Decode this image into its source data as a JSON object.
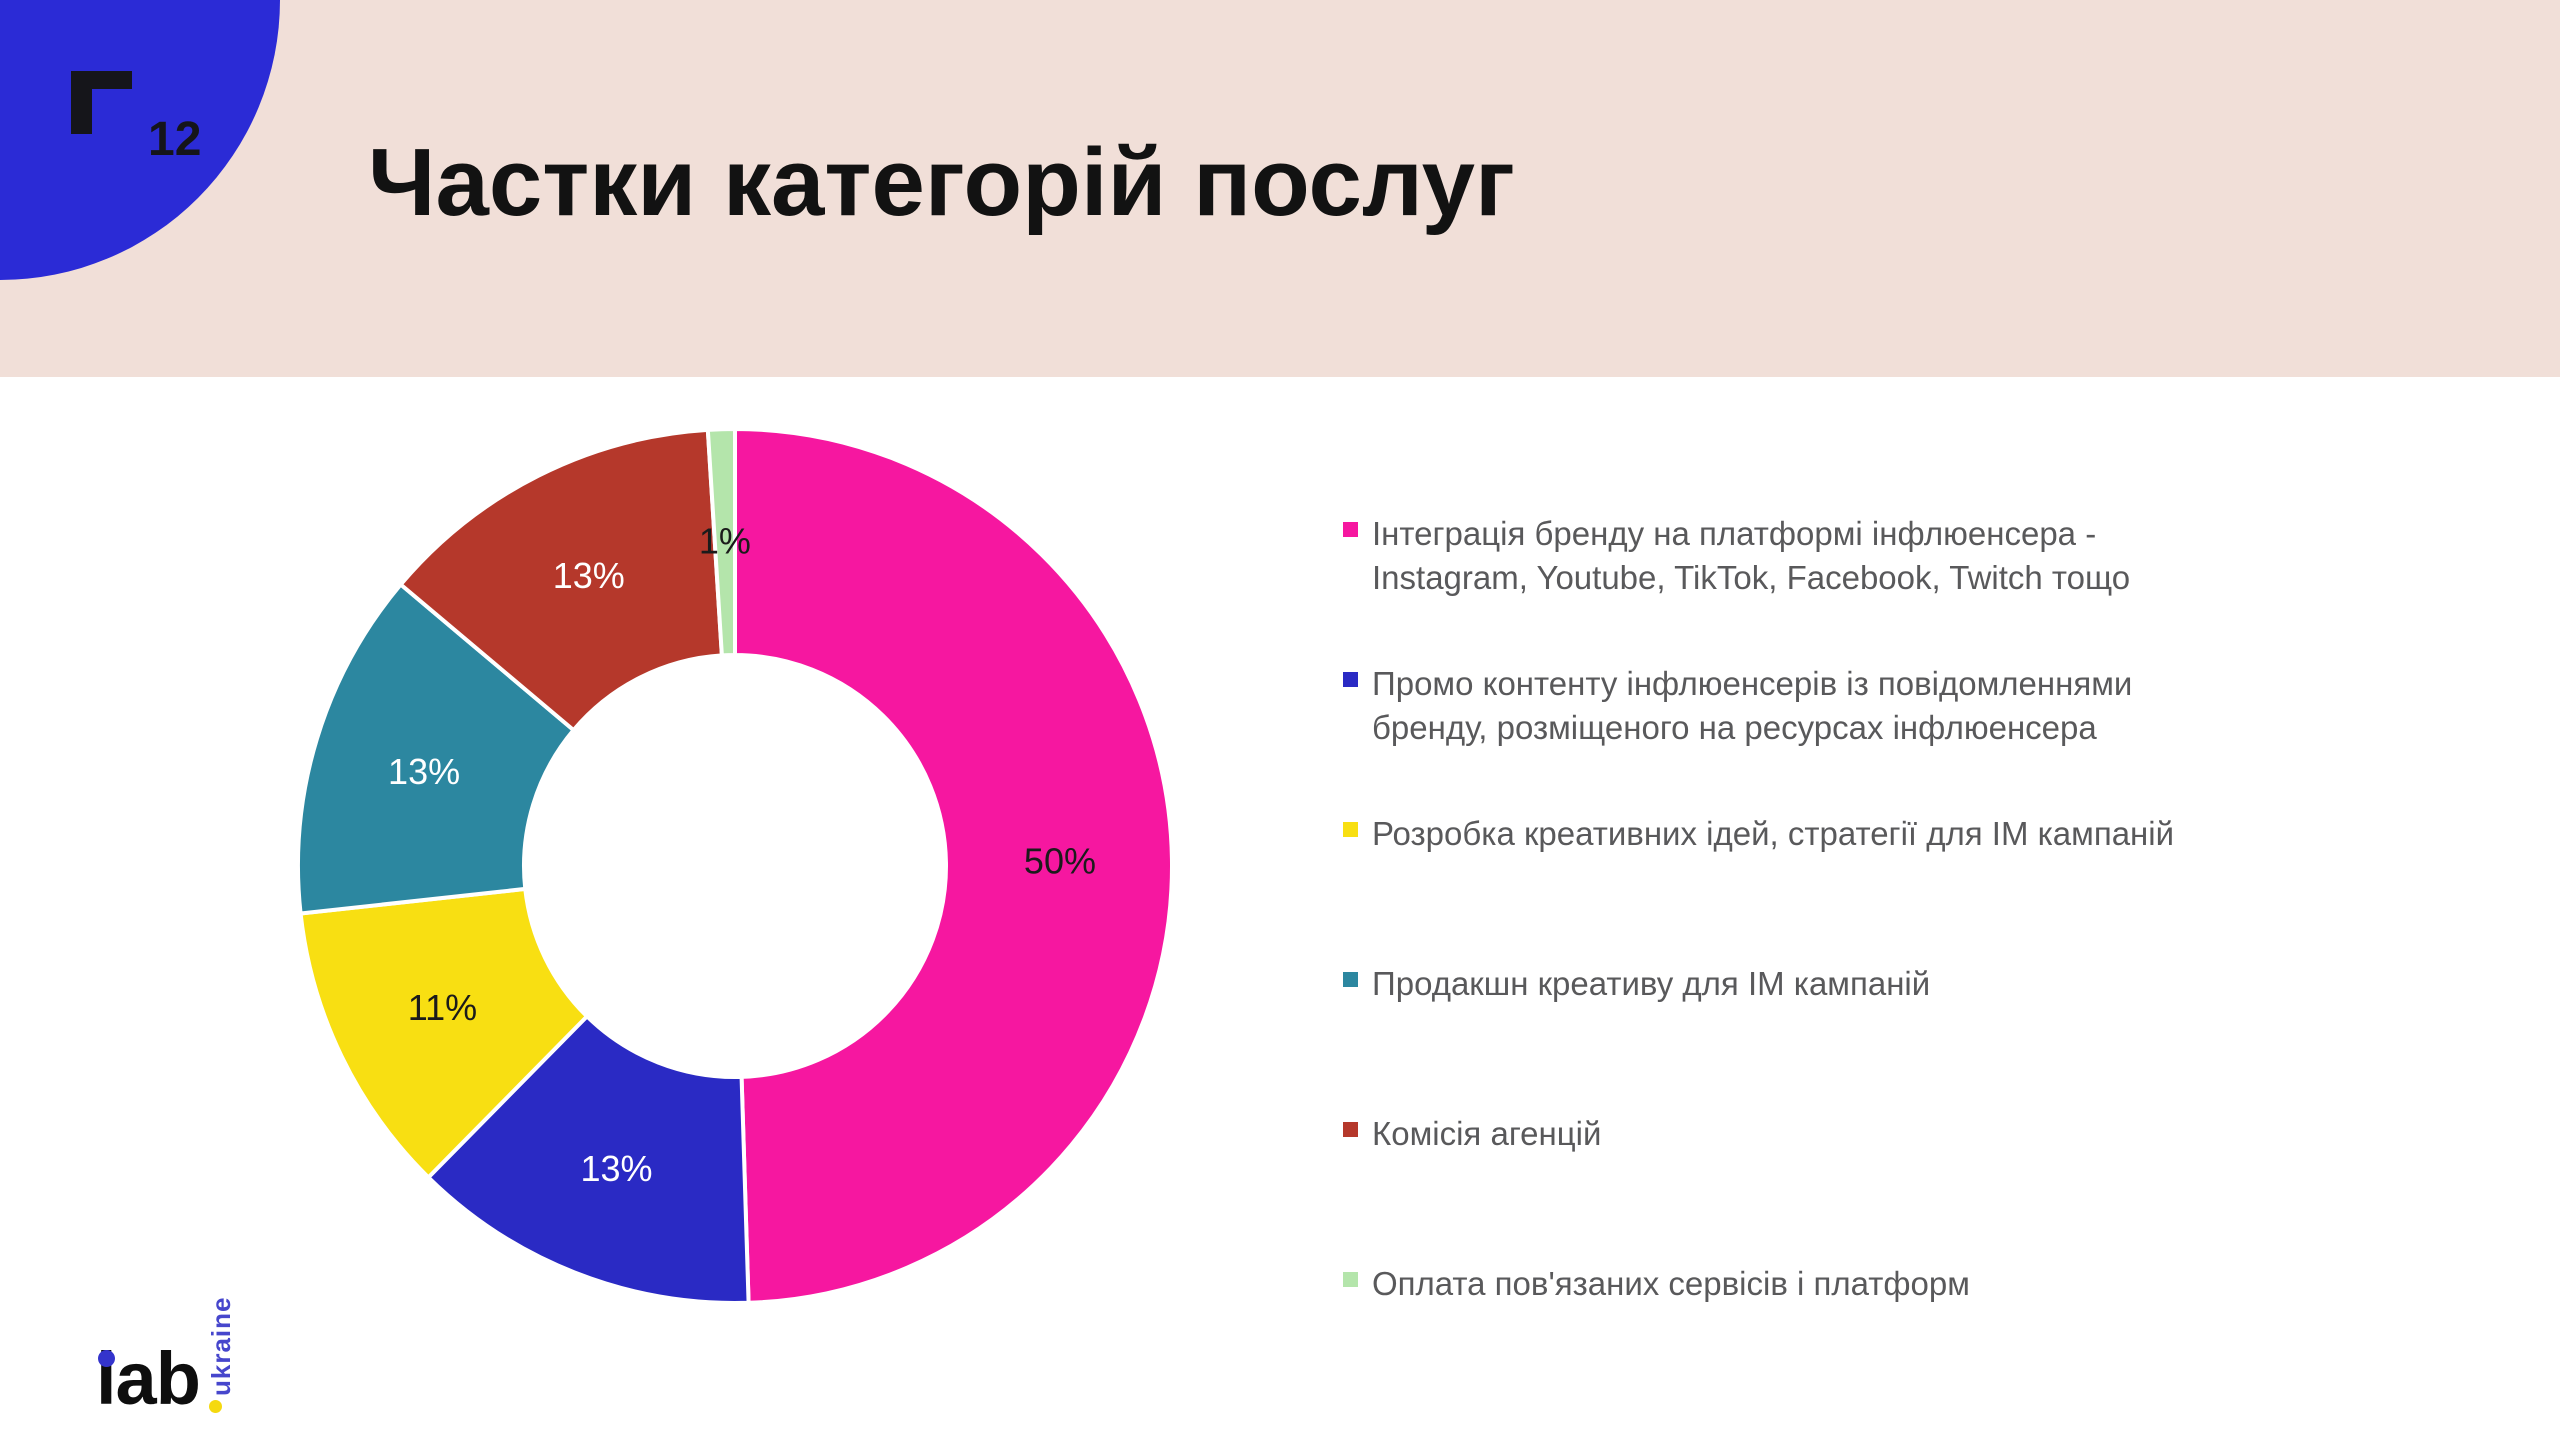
{
  "page": {
    "number": "12"
  },
  "header": {
    "title": "Частки категорій послуг",
    "band_color": "#F1DFD8",
    "corner_color": "#2B2BD6"
  },
  "logo": {
    "iab": "iab",
    "ukraine": "ukraine"
  },
  "legend": {
    "text_color": "#59595B",
    "position": "right"
  },
  "chart_data": {
    "type": "pie",
    "subtype": "donut",
    "title": "Частки категорій послуг",
    "start_angle_deg": 0,
    "direction": "clockwise",
    "legend_position": "right",
    "hole_ratio": 0.48,
    "segments": [
      {
        "label": "Інтеграція бренду на платформі інфлюенсера -\nInstagram, Youtube, TikTok, Facebook, Twitch тощо",
        "value": 50,
        "display": "50%",
        "color": "#F617A0",
        "value_label_color": "#1b1b1b"
      },
      {
        "label": "Промо контенту інфлюенсерів із повідомленнями\nбренду, розміщеного на ресурсах інфлюенсера",
        "value": 13,
        "display": "13%",
        "color": "#2A2AC4",
        "value_label_color": "#ffffff"
      },
      {
        "label": "Розробка креативних ідей, стратегії для ІМ кампаній",
        "value": 11,
        "display": "11%",
        "color": "#F8DF12",
        "value_label_color": "#1b1b1b"
      },
      {
        "label": "Продакшн креативу для ІМ кампаній",
        "value": 13,
        "display": "13%",
        "color": "#2C87A0",
        "value_label_color": "#ffffff"
      },
      {
        "label": "Комісія агенцій",
        "value": 13,
        "display": "13%",
        "color": "#B5382B",
        "value_label_color": "#ffffff"
      },
      {
        "label": "Оплата пов'язаних сервісів і платформ",
        "value": 1,
        "display": "1%",
        "color": "#B4E5AB",
        "value_label_color": "#1b1b1b"
      }
    ]
  }
}
